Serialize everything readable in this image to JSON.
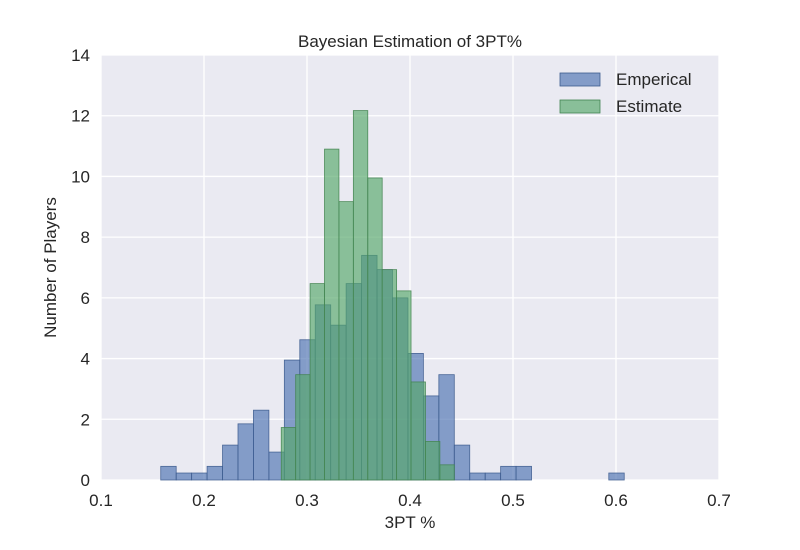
{
  "chart_data": {
    "type": "bar",
    "title": "Bayesian Estimation of 3PT%",
    "xlabel": "3PT %",
    "ylabel": "Number of Players",
    "xlim": [
      0.1,
      0.7
    ],
    "ylim": [
      0,
      14
    ],
    "xticks": [
      "0.1",
      "0.2",
      "0.3",
      "0.4",
      "0.5",
      "0.6",
      "0.7"
    ],
    "yticks": [
      "0",
      "2",
      "4",
      "6",
      "8",
      "10",
      "12",
      "14"
    ],
    "grid": true,
    "legend_position": "top-right",
    "series": [
      {
        "name": "Emperical",
        "color": "#4c72b0",
        "bins": [
          {
            "x0": 0.158,
            "x1": 0.173,
            "value": 0.45
          },
          {
            "x0": 0.173,
            "x1": 0.188,
            "value": 0.23
          },
          {
            "x0": 0.188,
            "x1": 0.203,
            "value": 0.23
          },
          {
            "x0": 0.203,
            "x1": 0.218,
            "value": 0.45
          },
          {
            "x0": 0.218,
            "x1": 0.233,
            "value": 1.15
          },
          {
            "x0": 0.233,
            "x1": 0.248,
            "value": 1.85
          },
          {
            "x0": 0.248,
            "x1": 0.263,
            "value": 2.3
          },
          {
            "x0": 0.263,
            "x1": 0.278,
            "value": 0.92
          },
          {
            "x0": 0.278,
            "x1": 0.293,
            "value": 3.95
          },
          {
            "x0": 0.293,
            "x1": 0.308,
            "value": 4.62
          },
          {
            "x0": 0.308,
            "x1": 0.323,
            "value": 5.77
          },
          {
            "x0": 0.323,
            "x1": 0.338,
            "value": 5.1
          },
          {
            "x0": 0.338,
            "x1": 0.353,
            "value": 6.47
          },
          {
            "x0": 0.353,
            "x1": 0.368,
            "value": 7.4
          },
          {
            "x0": 0.368,
            "x1": 0.383,
            "value": 6.93
          },
          {
            "x0": 0.383,
            "x1": 0.398,
            "value": 6.0
          },
          {
            "x0": 0.398,
            "x1": 0.413,
            "value": 4.17
          },
          {
            "x0": 0.413,
            "x1": 0.428,
            "value": 2.77
          },
          {
            "x0": 0.428,
            "x1": 0.443,
            "value": 3.47
          },
          {
            "x0": 0.443,
            "x1": 0.458,
            "value": 1.15
          },
          {
            "x0": 0.458,
            "x1": 0.473,
            "value": 0.23
          },
          {
            "x0": 0.473,
            "x1": 0.488,
            "value": 0.23
          },
          {
            "x0": 0.488,
            "x1": 0.503,
            "value": 0.45
          },
          {
            "x0": 0.503,
            "x1": 0.518,
            "value": 0.45
          },
          {
            "x0": 0.593,
            "x1": 0.608,
            "value": 0.23
          }
        ]
      },
      {
        "name": "Estimate",
        "color": "#55a868",
        "bins": [
          {
            "x0": 0.275,
            "x1": 0.289,
            "value": 1.73
          },
          {
            "x0": 0.289,
            "x1": 0.303,
            "value": 3.47
          },
          {
            "x0": 0.303,
            "x1": 0.317,
            "value": 6.47
          },
          {
            "x0": 0.317,
            "x1": 0.331,
            "value": 10.9
          },
          {
            "x0": 0.331,
            "x1": 0.345,
            "value": 9.17
          },
          {
            "x0": 0.345,
            "x1": 0.359,
            "value": 12.17
          },
          {
            "x0": 0.359,
            "x1": 0.373,
            "value": 9.95
          },
          {
            "x0": 0.373,
            "x1": 0.387,
            "value": 6.93
          },
          {
            "x0": 0.387,
            "x1": 0.401,
            "value": 6.23
          },
          {
            "x0": 0.401,
            "x1": 0.415,
            "value": 3.23
          },
          {
            "x0": 0.415,
            "x1": 0.429,
            "value": 1.27
          },
          {
            "x0": 0.429,
            "x1": 0.443,
            "value": 0.5
          }
        ]
      }
    ]
  }
}
